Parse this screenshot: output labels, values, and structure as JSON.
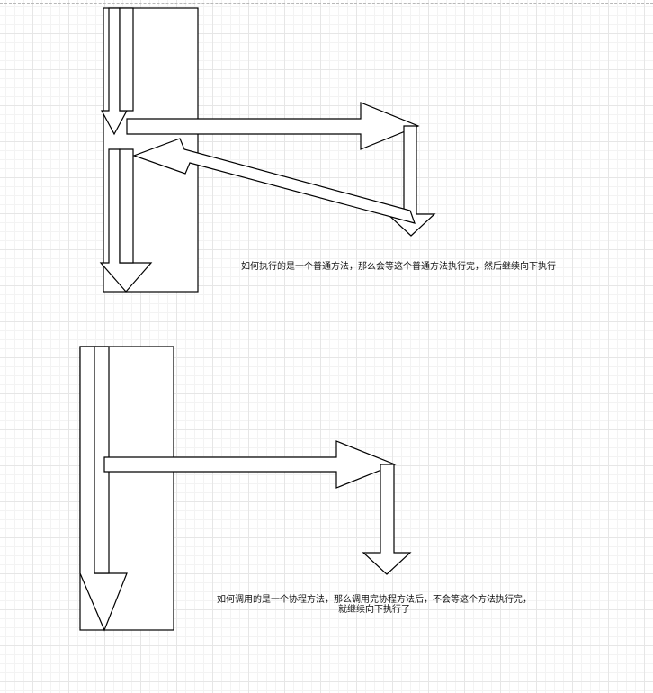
{
  "captions": {
    "normal_call": "如何执行的是一个普通方法，那么会等这个普通方法执行完，然后继续向下执行",
    "coroutine_call_line1": "如何调用的是一个协程方法，那么调用完协程方法后，不会等这个方法执行完，",
    "coroutine_call_line2": "就继续向下执行了"
  },
  "colors": {
    "stroke": "#000000",
    "fill": "#ffffff",
    "grid_major": "#e6e6e6",
    "grid_minor": "#f3f3f3"
  }
}
